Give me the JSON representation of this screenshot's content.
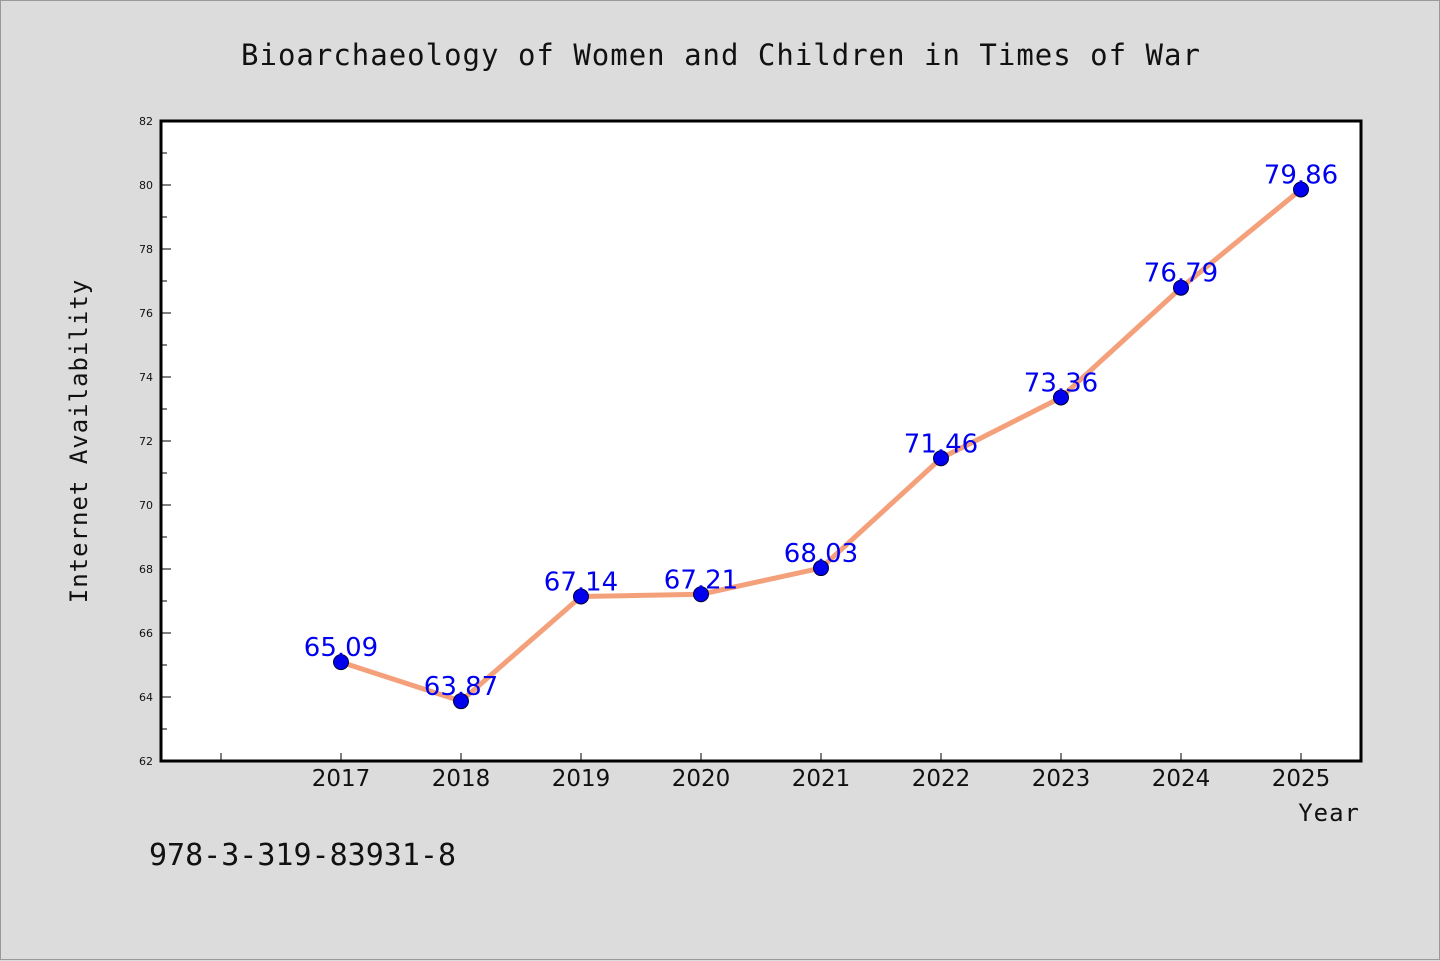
{
  "footer_text": "978-3-319-83931-8",
  "colors": {
    "background": "#dcdcdc",
    "plot_background": "#ffffff",
    "line": "#f4a07a",
    "marker": "#0000ee",
    "data_label": "#0000ee"
  },
  "chart_data": {
    "type": "line",
    "title": "Bioarchaeology of Women and Children in Times of War",
    "xlabel": "Year",
    "ylabel": "Internet Availability",
    "x": [
      2017,
      2018,
      2019,
      2020,
      2021,
      2022,
      2023,
      2024,
      2025
    ],
    "x_tick_labels": [
      "2017",
      "2018",
      "2019",
      "2020",
      "2021",
      "2022",
      "2023",
      "2024",
      "2025"
    ],
    "values": [
      65.09,
      63.87,
      67.14,
      67.21,
      68.03,
      71.46,
      73.36,
      76.79,
      79.86
    ],
    "data_labels": [
      "65.09",
      "63.87",
      "67.14",
      "67.21",
      "68.03",
      "71.46",
      "73.36",
      "76.79",
      "79.86"
    ],
    "ylim": [
      62,
      82
    ],
    "xlim": [
      2015.5,
      2025.5
    ],
    "y_ticks": [
      62,
      64,
      66,
      68,
      70,
      72,
      74,
      76,
      78,
      80,
      82
    ],
    "y_tick_labels": [
      "62",
      "64",
      "66",
      "68",
      "70",
      "72",
      "74",
      "76",
      "78",
      "80",
      "82"
    ],
    "grid": false,
    "legend": "none"
  }
}
